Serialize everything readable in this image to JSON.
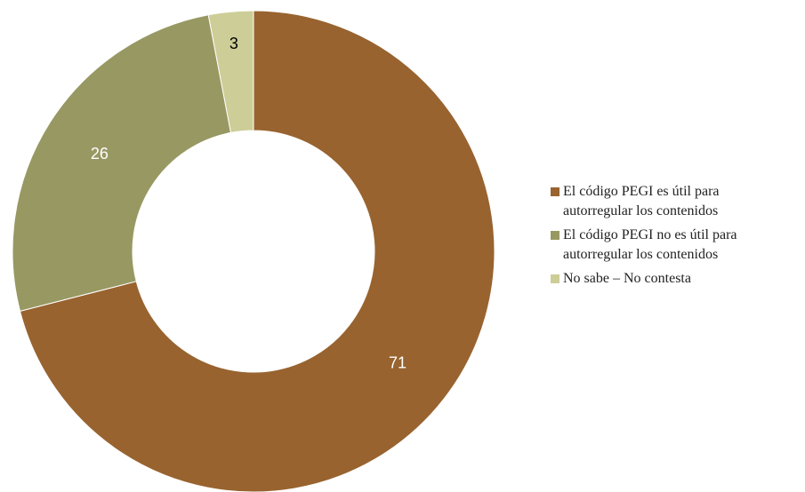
{
  "chart_data": {
    "type": "pie",
    "style": "donut",
    "title": "",
    "slices": [
      {
        "label": "El código PEGI es útil para\nautorregular los contenidos",
        "value": 71,
        "color": "#98632F",
        "text_color": "#ffffff"
      },
      {
        "label": "El código PEGI no es útil para\nautorregular los contenidos",
        "value": 26,
        "color": "#989863",
        "text_color": "#ffffff"
      },
      {
        "label": "No sabe – No contesta",
        "value": 3,
        "color": "#CDCD98",
        "text_color": "#000000"
      }
    ],
    "legend_position": "right",
    "start_angle": "top",
    "direction": "clockwise"
  }
}
